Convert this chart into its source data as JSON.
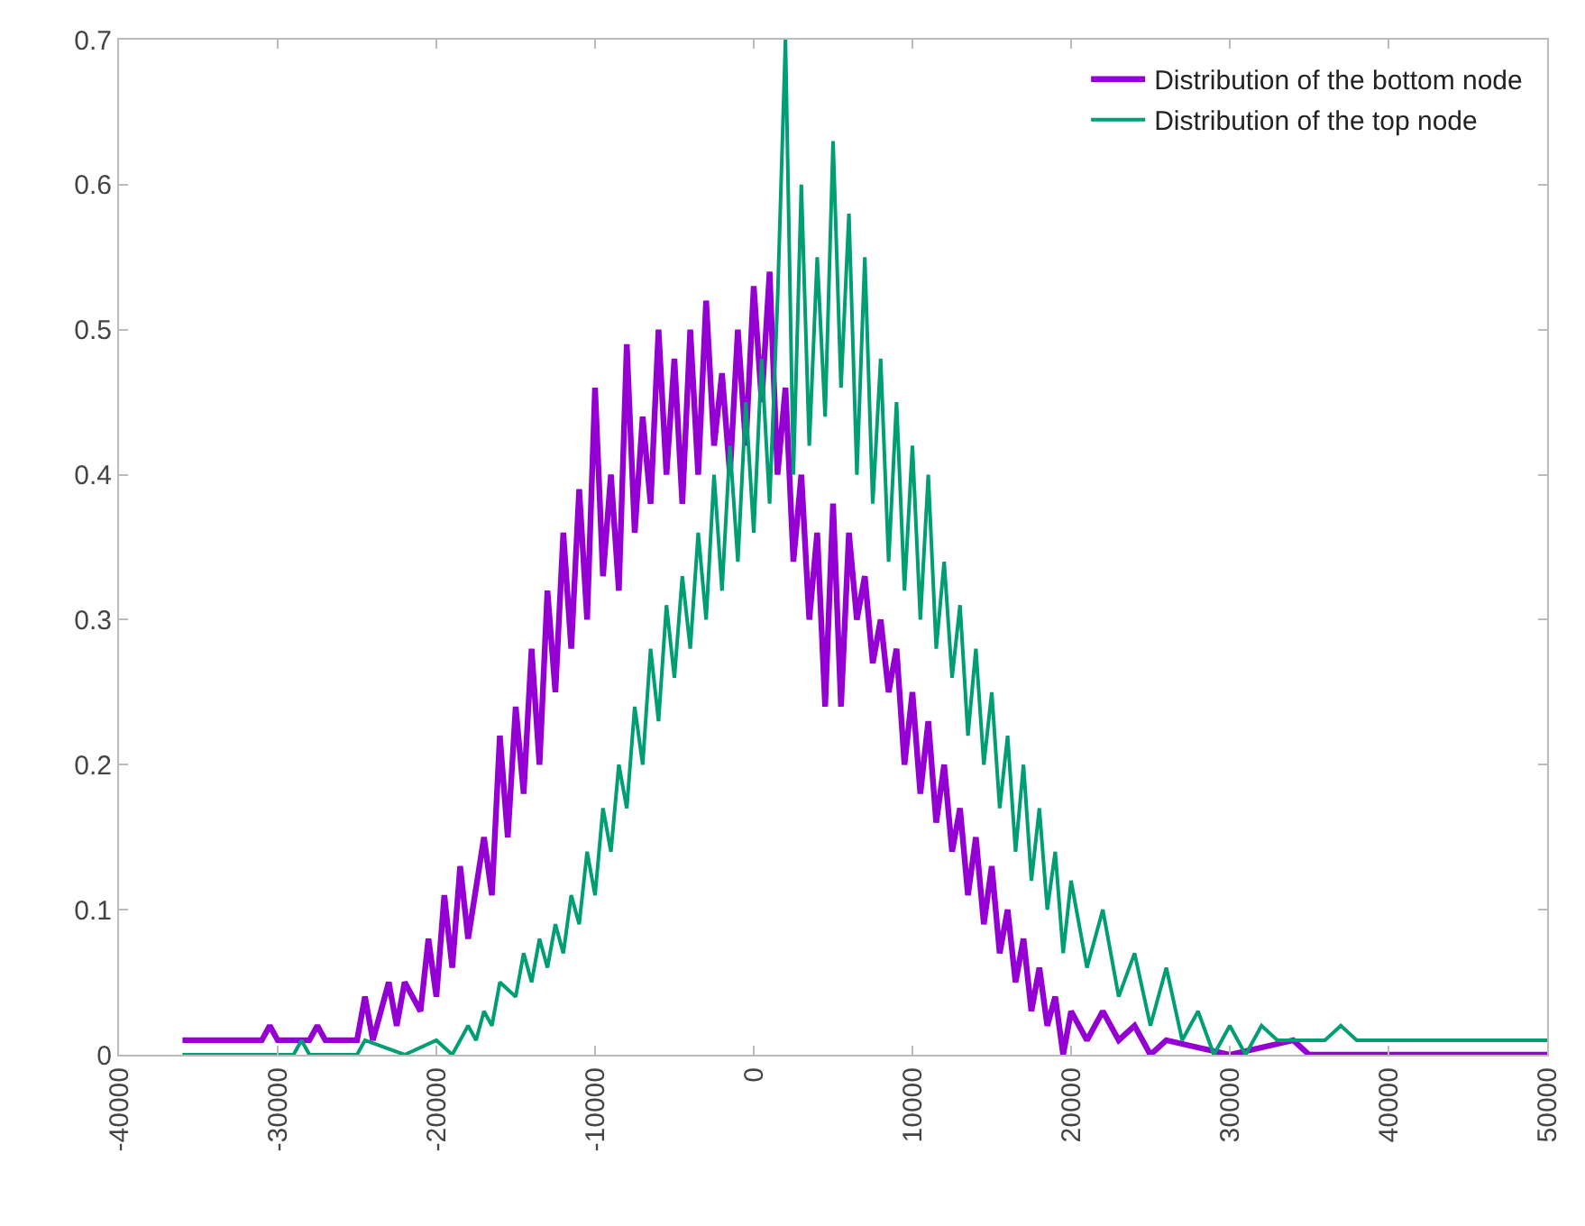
{
  "chart_data": {
    "type": "line",
    "xlim": [
      -40000,
      50000
    ],
    "xticks": [
      -40000,
      -30000,
      -20000,
      -10000,
      0,
      10000,
      20000,
      30000,
      40000,
      50000
    ],
    "ylim": [
      0,
      0.7
    ],
    "yticks": [
      0,
      0.1,
      0.2,
      0.3,
      0.4,
      0.5,
      0.6,
      0.7
    ],
    "grid": false,
    "legend": "top right",
    "marker": "none",
    "line_style": "solid",
    "series": [
      {
        "name": "Distribution of the bottom node",
        "color": "#9400d3",
        "x": [
          -36000,
          -31000,
          -30500,
          -30000,
          -28000,
          -27500,
          -27000,
          -25000,
          -24500,
          -24000,
          -23000,
          -22500,
          -22000,
          -21000,
          -20500,
          -20000,
          -19500,
          -19000,
          -18500,
          -18000,
          -17000,
          -16500,
          -16000,
          -15500,
          -15000,
          -14500,
          -14000,
          -13500,
          -13000,
          -12500,
          -12000,
          -11500,
          -11000,
          -10500,
          -10000,
          -9500,
          -9000,
          -8500,
          -8000,
          -7500,
          -7000,
          -6500,
          -6000,
          -5500,
          -5000,
          -4500,
          -4000,
          -3500,
          -3000,
          -2500,
          -2000,
          -1500,
          -1000,
          -500,
          0,
          500,
          1000,
          1500,
          2000,
          2500,
          3000,
          3500,
          4000,
          4500,
          5000,
          5500,
          6000,
          6500,
          7000,
          7500,
          8000,
          8500,
          9000,
          9500,
          10000,
          10500,
          11000,
          11500,
          12000,
          12500,
          13000,
          13500,
          14000,
          14500,
          15000,
          15500,
          16000,
          16500,
          17000,
          17500,
          18000,
          18500,
          19000,
          19500,
          20000,
          21000,
          22000,
          23000,
          24000,
          25000,
          26000,
          30000,
          34000,
          35000,
          50000
        ],
        "values": [
          0.01,
          0.01,
          0.02,
          0.01,
          0.01,
          0.02,
          0.01,
          0.01,
          0.04,
          0.01,
          0.05,
          0.02,
          0.05,
          0.03,
          0.08,
          0.04,
          0.11,
          0.06,
          0.13,
          0.08,
          0.15,
          0.11,
          0.22,
          0.15,
          0.24,
          0.18,
          0.28,
          0.2,
          0.32,
          0.25,
          0.36,
          0.28,
          0.39,
          0.3,
          0.46,
          0.33,
          0.4,
          0.32,
          0.49,
          0.36,
          0.44,
          0.38,
          0.5,
          0.4,
          0.48,
          0.38,
          0.5,
          0.4,
          0.52,
          0.42,
          0.47,
          0.4,
          0.5,
          0.42,
          0.53,
          0.45,
          0.54,
          0.4,
          0.46,
          0.34,
          0.4,
          0.3,
          0.36,
          0.24,
          0.38,
          0.24,
          0.36,
          0.3,
          0.33,
          0.27,
          0.3,
          0.25,
          0.28,
          0.2,
          0.25,
          0.18,
          0.23,
          0.16,
          0.2,
          0.14,
          0.17,
          0.11,
          0.15,
          0.09,
          0.13,
          0.07,
          0.1,
          0.05,
          0.08,
          0.03,
          0.06,
          0.02,
          0.04,
          0.0,
          0.03,
          0.01,
          0.03,
          0.01,
          0.02,
          0.0,
          0.01,
          0.0,
          0.01,
          0.0,
          0.0
        ]
      },
      {
        "name": "Distribution of the top node",
        "color": "#009e73",
        "x": [
          -36000,
          -29000,
          -28500,
          -28000,
          -25000,
          -24500,
          -22000,
          -20000,
          -19000,
          -18000,
          -17500,
          -17000,
          -16500,
          -16000,
          -15000,
          -14500,
          -14000,
          -13500,
          -13000,
          -12500,
          -12000,
          -11500,
          -11000,
          -10500,
          -10000,
          -9500,
          -9000,
          -8500,
          -8000,
          -7500,
          -7000,
          -6500,
          -6000,
          -5500,
          -5000,
          -4500,
          -4000,
          -3500,
          -3000,
          -2500,
          -2000,
          -1500,
          -1000,
          -500,
          0,
          500,
          1000,
          1500,
          2000,
          2500,
          3000,
          3500,
          4000,
          4500,
          5000,
          5500,
          6000,
          6500,
          7000,
          7500,
          8000,
          8500,
          9000,
          9500,
          10000,
          10500,
          11000,
          11500,
          12000,
          12500,
          13000,
          13500,
          14000,
          14500,
          15000,
          15500,
          16000,
          16500,
          17000,
          17500,
          18000,
          18500,
          19000,
          19500,
          20000,
          21000,
          22000,
          23000,
          24000,
          25000,
          26000,
          27000,
          28000,
          29000,
          30000,
          31000,
          32000,
          33000,
          34000,
          36000,
          37000,
          38000,
          39000,
          40000,
          50000
        ],
        "values": [
          0,
          0,
          0.01,
          0,
          0,
          0.01,
          0,
          0.01,
          0,
          0.02,
          0.01,
          0.03,
          0.02,
          0.05,
          0.04,
          0.07,
          0.05,
          0.08,
          0.06,
          0.09,
          0.07,
          0.11,
          0.09,
          0.14,
          0.11,
          0.17,
          0.14,
          0.2,
          0.17,
          0.24,
          0.2,
          0.28,
          0.23,
          0.31,
          0.26,
          0.33,
          0.28,
          0.36,
          0.3,
          0.4,
          0.32,
          0.42,
          0.34,
          0.45,
          0.36,
          0.48,
          0.38,
          0.52,
          0.7,
          0.4,
          0.6,
          0.42,
          0.55,
          0.44,
          0.63,
          0.46,
          0.58,
          0.4,
          0.55,
          0.38,
          0.48,
          0.34,
          0.45,
          0.32,
          0.42,
          0.3,
          0.4,
          0.28,
          0.34,
          0.26,
          0.31,
          0.22,
          0.28,
          0.2,
          0.25,
          0.17,
          0.22,
          0.14,
          0.2,
          0.12,
          0.17,
          0.1,
          0.14,
          0.07,
          0.12,
          0.06,
          0.1,
          0.04,
          0.07,
          0.02,
          0.06,
          0.01,
          0.03,
          0.0,
          0.02,
          0.0,
          0.02,
          0.01,
          0.01,
          0.01,
          0.02,
          0.01,
          0.01,
          0.01,
          0.01
        ]
      }
    ]
  }
}
